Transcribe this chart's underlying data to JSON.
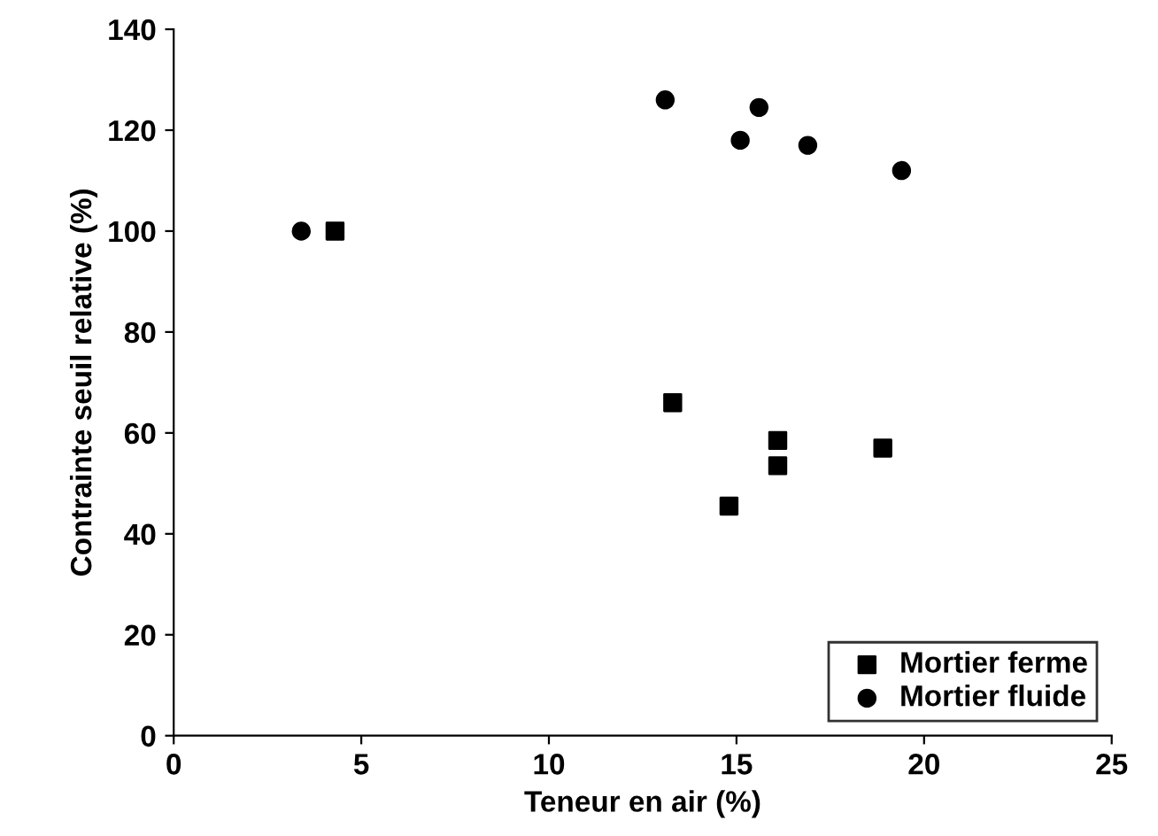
{
  "chart_data": {
    "type": "scatter",
    "xlabel": "Teneur en air (%)",
    "ylabel": "Contrainte seuil relative (%)",
    "xlim": [
      0,
      25
    ],
    "xticks": [
      0,
      5,
      10,
      15,
      20,
      25
    ],
    "ylim": [
      0,
      140
    ],
    "yticks": [
      0,
      20,
      40,
      60,
      80,
      100,
      120,
      140
    ],
    "grid": false,
    "legend": "bottom right",
    "series": [
      {
        "name": "Mortier ferme",
        "color": "#000000",
        "marker": "square",
        "x": [
          4.3,
          13.3,
          16.1,
          16.1,
          14.8,
          18.9
        ],
        "values": [
          100,
          66,
          58.5,
          53.5,
          45.5,
          57
        ]
      },
      {
        "name": "Mortier fluide",
        "color": "#000000",
        "marker": "circle",
        "x": [
          3.4,
          13.1,
          15.6,
          15.1,
          16.9,
          19.4
        ],
        "values": [
          100,
          126,
          124.5,
          118,
          117,
          112
        ]
      }
    ]
  }
}
